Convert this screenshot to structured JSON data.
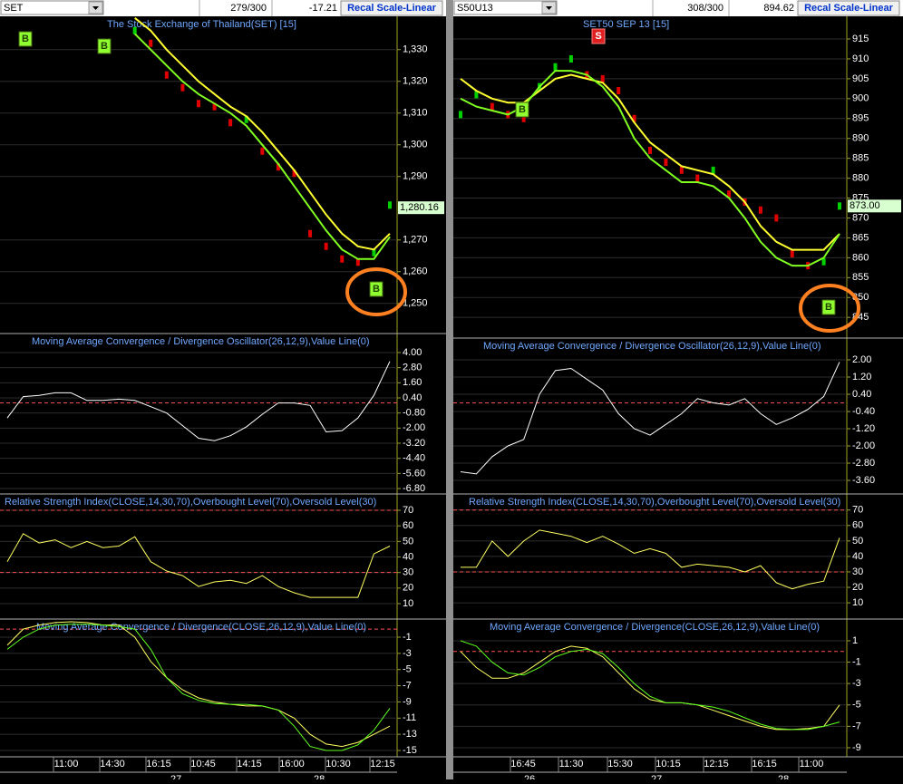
{
  "left": {
    "toolbar": {
      "symbol": "SET",
      "count": "279/300",
      "change": "-17.21",
      "button": "Recal Scale-Linear"
    },
    "price": {
      "title": "The Stock Exchange of Thailand(SET) [15]",
      "ylim": [
        1240.5,
        1340.5
      ],
      "yticks": [
        {
          "value": 1330,
          "label": "1,330"
        },
        {
          "value": 1320,
          "label": "1,320"
        },
        {
          "value": 1310,
          "label": "1,310"
        },
        {
          "value": 1300,
          "label": "1,300"
        },
        {
          "value": 1290,
          "label": "1,290"
        },
        {
          "value": 1270,
          "label": "1,270"
        },
        {
          "value": 1260,
          "label": "1,260"
        },
        {
          "value": 1250,
          "label": "1,250"
        }
      ],
      "last": {
        "value": 1280.16,
        "label": "1,280.16"
      },
      "up_color": "#00d000",
      "down_color": "#e00000",
      "close": [
        null,
        null,
        null,
        null,
        null,
        null,
        null,
        null,
        1336,
        1332,
        1322,
        1318,
        1313,
        1312,
        1307,
        1308,
        1298,
        1293,
        1291,
        1272,
        1268,
        1264,
        1263,
        1266,
        1281
      ],
      "series": [
        {
          "color": "#ffff30",
          "values": [
            null,
            null,
            null,
            null,
            null,
            null,
            null,
            null,
            1340,
            1336,
            1330,
            1325,
            1320,
            1316,
            1312,
            1309,
            1304,
            1298,
            1292,
            1285,
            1278,
            1272,
            1268,
            1267,
            1272
          ]
        },
        {
          "color": "#80ff20",
          "values": [
            null,
            null,
            null,
            null,
            null,
            null,
            null,
            null,
            1335,
            1330,
            1325,
            1320,
            1316,
            1313,
            1310,
            1306,
            1300,
            1294,
            1287,
            1280,
            1273,
            1267,
            1264,
            1264,
            1271
          ]
        }
      ],
      "signals": [
        "B",
        "B",
        "B"
      ]
    },
    "osc": {
      "title": "Moving Average Convergence / Divergence Oscillator(26,12,9),Value Line(0)",
      "ylim": [
        -7.23,
        5.51
      ],
      "yticks": [
        {
          "value": 4,
          "label": "4.00"
        },
        {
          "value": 2.8,
          "label": "2.80"
        },
        {
          "value": 1.6,
          "label": "1.60"
        },
        {
          "value": 0.4,
          "label": "0.40"
        },
        {
          "value": -0.8,
          "label": "-0.80"
        },
        {
          "value": -2,
          "label": "-2.00"
        },
        {
          "value": -3.2,
          "label": "-3.20"
        },
        {
          "value": -4.4,
          "label": "-4.40"
        },
        {
          "value": -5.6,
          "label": "-5.60"
        },
        {
          "value": -6.8,
          "label": "-6.80"
        }
      ],
      "levels": [
        0
      ],
      "series": [
        {
          "color": "#ffffff",
          "values": [
            -1.2,
            0.5,
            0.6,
            0.8,
            0.8,
            0.2,
            0.2,
            0.3,
            0.2,
            -0.3,
            -0.8,
            -1.8,
            -2.8,
            -3.0,
            -2.6,
            -1.9,
            -0.9,
            0.0,
            0.0,
            -0.2,
            -2.3,
            -2.2,
            -1.2,
            0.6,
            3.3
          ]
        }
      ]
    },
    "rsi": {
      "title": "Relative Strength Index(CLOSE,14,30,70),Overbought Level(70),Oversold Level(30)",
      "ylim": [
        0.1,
        80.5
      ],
      "yticks": [
        70,
        60,
        50,
        40,
        30,
        20,
        10
      ],
      "levels": [
        70,
        30
      ],
      "series": [
        {
          "color": "#ffff60",
          "values": [
            37,
            55,
            49,
            51,
            46,
            50,
            46,
            47,
            53,
            37,
            31,
            28,
            21,
            24,
            25,
            23,
            28,
            21,
            17,
            14,
            14,
            14,
            14,
            42,
            47
          ]
        }
      ]
    },
    "macd": {
      "title": "Moving Average Convergence / Divergence(CLOSE,26,12,9),Value Line(0)",
      "ylim": [
        -15.78,
        1.24
      ],
      "yticks": [
        -1,
        -3,
        -5,
        -7,
        -9,
        -11,
        -13,
        -15
      ],
      "levels": [
        0
      ],
      "series": [
        {
          "color": "#ffff60",
          "values": [
            -2,
            0,
            0.5,
            0.8,
            0.9,
            0.8,
            0.5,
            0.5,
            -1,
            -4,
            -6,
            -7.5,
            -8.5,
            -9,
            -9.3,
            -9.5,
            -9.5,
            -10,
            -11,
            -13,
            -14.2,
            -14.5,
            -14,
            -13,
            -12
          ]
        },
        {
          "color": "#60ff20",
          "values": [
            -2.5,
            -1,
            0,
            0.5,
            0.6,
            0.6,
            0.5,
            0.3,
            0,
            -2.5,
            -6,
            -8,
            -8.8,
            -9.2,
            -9.3,
            -9.3,
            -9.5,
            -10,
            -12,
            -14.5,
            -15,
            -15,
            -14.3,
            -12.5,
            -9.8
          ]
        }
      ]
    },
    "times": [
      "11:00",
      "14:30",
      "16:15",
      "10:45",
      "14:15",
      "16:00",
      "10:30",
      "12:15"
    ],
    "dates": [
      "27",
      "28"
    ]
  },
  "right": {
    "toolbar": {
      "symbol": "S50U13",
      "count": "308/300",
      "change": "894.62",
      "button": "Recal Scale-Linear"
    },
    "price": {
      "title": "SET50 SEP 13   [15]",
      "ylim": [
        839.8,
        920.7
      ],
      "yticks": [
        915,
        910,
        905,
        900,
        895,
        890,
        885,
        880,
        875,
        870,
        865,
        860,
        855,
        850,
        845
      ],
      "last": {
        "value": 873,
        "label": "873.00"
      },
      "up_color": "#00d000",
      "down_color": "#e00000",
      "close": [
        896,
        901,
        898,
        896,
        895,
        903,
        908,
        910,
        906,
        905,
        902,
        895,
        887,
        884,
        882,
        880,
        882,
        876,
        874,
        872,
        870,
        861,
        858,
        859,
        873
      ],
      "series": [
        {
          "color": "#ffff30",
          "values": [
            905,
            902,
            900,
            899,
            899,
            902,
            905,
            906,
            905,
            904,
            900,
            894,
            889,
            886,
            883,
            882,
            881,
            878,
            874,
            868,
            864,
            862,
            862,
            862,
            866
          ]
        },
        {
          "color": "#80ff20",
          "values": [
            900,
            898,
            897,
            896,
            898,
            903,
            907,
            907,
            906,
            903,
            898,
            890,
            885,
            882,
            879,
            879,
            878,
            875,
            870,
            864,
            860,
            858,
            858,
            860,
            866
          ]
        }
      ],
      "signals": [
        "S",
        "B",
        "B"
      ]
    },
    "osc": {
      "title": "Moving Average Convergence / Divergence Oscillator(26,12,9),Value Line(0)",
      "ylim": [
        -4.23,
        3.01
      ],
      "yticks": [
        {
          "value": 2,
          "label": "2.00"
        },
        {
          "value": 1.2,
          "label": "1.20"
        },
        {
          "value": 0.4,
          "label": "0.40"
        },
        {
          "value": -0.4,
          "label": "-0.40"
        },
        {
          "value": -1.2,
          "label": "-1.20"
        },
        {
          "value": -2,
          "label": "-2.00"
        },
        {
          "value": -2.8,
          "label": "-2.80"
        },
        {
          "value": -3.6,
          "label": "-3.60"
        }
      ],
      "levels": [
        0
      ],
      "series": [
        {
          "color": "#ffffff",
          "values": [
            -3.2,
            -3.3,
            -2.5,
            -2,
            -1.7,
            0.4,
            1.5,
            1.6,
            1.1,
            0.6,
            -0.5,
            -1.2,
            -1.5,
            -1.0,
            -0.5,
            0.2,
            0,
            -0.1,
            0.2,
            -0.5,
            -1.0,
            -0.7,
            -0.3,
            0.3,
            1.9
          ]
        }
      ]
    },
    "rsi": {
      "title": "Relative Strength Index(CLOSE,14,30,70),Overbought Level(70),Oversold Level(30)",
      "ylim": [
        -0.5,
        80.4
      ],
      "yticks": [
        70,
        60,
        50,
        40,
        30,
        20,
        10
      ],
      "levels": [
        70,
        30
      ],
      "series": [
        {
          "color": "#ffff60",
          "values": [
            33,
            33,
            50,
            40,
            50,
            57,
            55,
            53,
            49,
            53,
            48,
            42,
            45,
            42,
            33,
            35,
            34,
            33,
            30,
            34,
            23,
            19,
            22,
            24,
            52
          ]
        }
      ]
    },
    "macd": {
      "title": "Moving Average Convergence / Divergence(CLOSE,26,12,9),Value Line(0)",
      "ylim": [
        -9.85,
        3.03
      ],
      "yticks": [
        1,
        -1,
        -3,
        -5,
        -7,
        -9
      ],
      "levels": [
        0
      ],
      "series": [
        {
          "color": "#ffff60",
          "values": [
            0,
            -1.5,
            -2.5,
            -2.5,
            -2,
            -1,
            0,
            0.5,
            0.3,
            -0.5,
            -2,
            -3.5,
            -4.5,
            -4.8,
            -4.8,
            -5,
            -5.5,
            -6,
            -6.5,
            -7,
            -7.3,
            -7.3,
            -7.2,
            -7,
            -5
          ]
        },
        {
          "color": "#60ff20",
          "values": [
            1,
            0.5,
            -1,
            -2,
            -2.2,
            -1.5,
            -0.5,
            0,
            0.2,
            -0.2,
            -1.5,
            -3,
            -4.2,
            -4.8,
            -4.8,
            -5,
            -5.2,
            -5.6,
            -6.2,
            -6.8,
            -7.2,
            -7.3,
            -7.3,
            -7,
            -6.6
          ]
        }
      ]
    },
    "times": [
      "16:45",
      "11:30",
      "15:30",
      "10:15",
      "12:15",
      "16:15",
      "11:00"
    ],
    "dates": [
      "26",
      "27",
      "28"
    ]
  }
}
